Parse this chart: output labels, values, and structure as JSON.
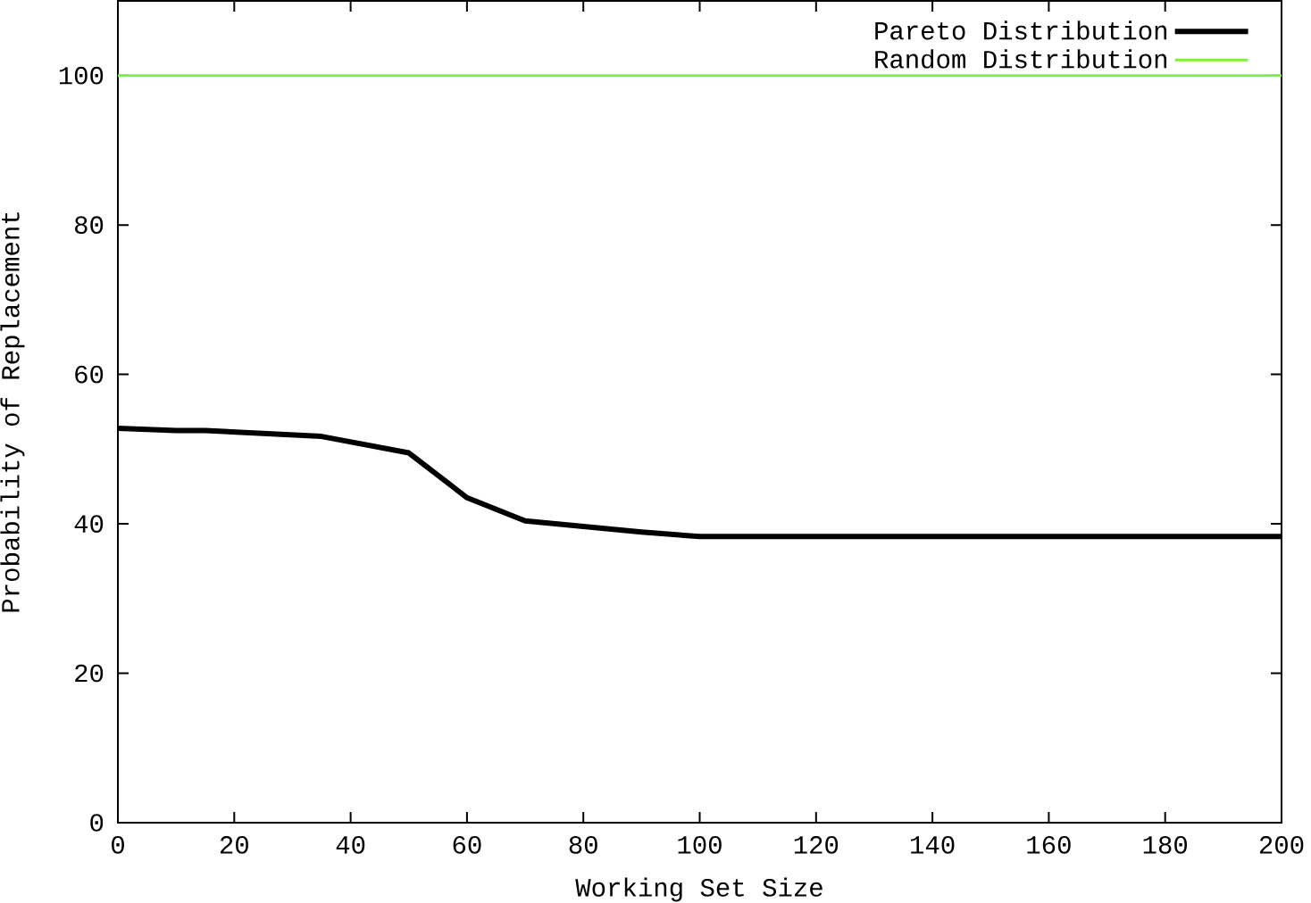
{
  "chart_data": {
    "type": "line",
    "xlabel": "Working Set Size",
    "ylabel": "Probability of Replacement",
    "xlim": [
      0,
      200
    ],
    "ylim": [
      0,
      110
    ],
    "xticks": [
      0,
      20,
      40,
      60,
      80,
      100,
      120,
      140,
      160,
      180,
      200
    ],
    "yticks": [
      0,
      20,
      40,
      60,
      80,
      100
    ],
    "legend": "top right",
    "series": [
      {
        "name": "Pareto Distribution",
        "color": "#000000",
        "x": [
          0,
          10,
          15,
          35,
          50,
          60,
          70,
          90,
          100,
          200
        ],
        "values": [
          52.8,
          52.5,
          52.5,
          51.7,
          49.5,
          43.5,
          40.4,
          38.9,
          38.3,
          38.3
        ]
      },
      {
        "name": "Random Distribution",
        "color": "#80f040",
        "x": [
          0,
          200
        ],
        "values": [
          100,
          100
        ]
      }
    ]
  }
}
